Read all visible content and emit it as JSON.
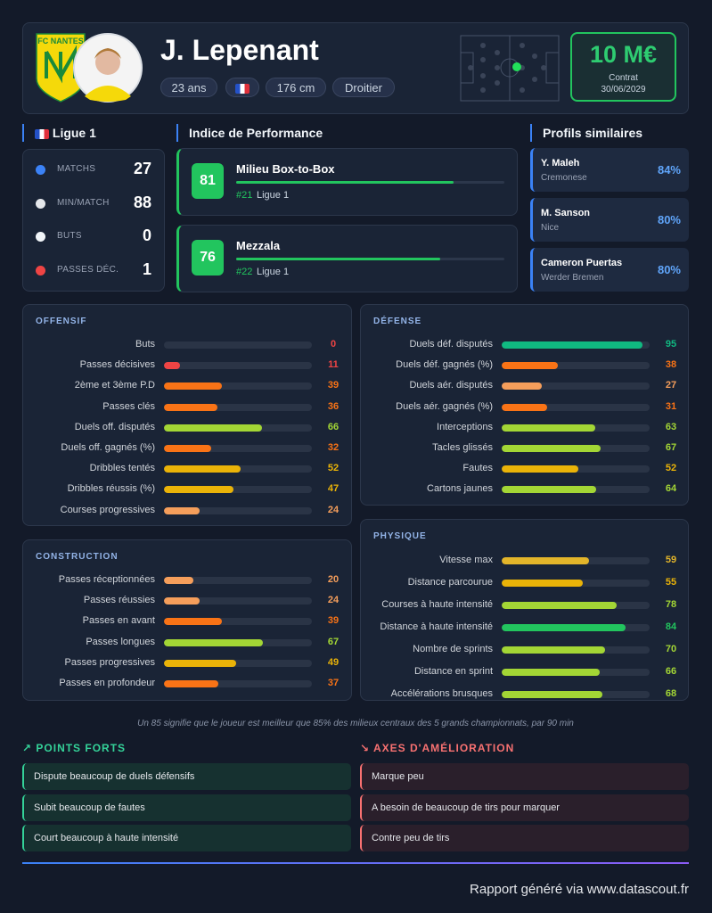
{
  "header": {
    "club": "FC NANTES",
    "name": "J. Lepenant",
    "age": "23 ans",
    "height": "176 cm",
    "foot": "Droitier",
    "market_value": "10 M€",
    "contract_label": "Contrat",
    "contract_end": "30/06/2029"
  },
  "league": {
    "title": "Ligue 1",
    "stats": [
      {
        "label": "MATCHS",
        "value": 27
      },
      {
        "label": "MIN/MATCH",
        "value": 88
      },
      {
        "label": "BUTS",
        "value": 0
      },
      {
        "label": "PASSES DÉC.",
        "value": 1
      }
    ]
  },
  "performance": {
    "title": "Indice de Performance",
    "roles": [
      {
        "score": 81,
        "role": "Milieu Box-to-Box",
        "rank": "#21",
        "league": "Ligue 1"
      },
      {
        "score": 76,
        "role": "Mezzala",
        "rank": "#22",
        "league": "Ligue 1"
      }
    ]
  },
  "similar": {
    "title": "Profils similaires",
    "players": [
      {
        "name": "Y. Maleh",
        "club": "Cremonese",
        "similarity": "84%"
      },
      {
        "name": "M. Sanson",
        "club": "Nice",
        "similarity": "80%"
      },
      {
        "name": "Cameron Puertas",
        "club": "Werder Bremen",
        "similarity": "80%"
      }
    ]
  },
  "panels": [
    {
      "title": "OFFENSIF",
      "metrics": [
        {
          "label": "Buts",
          "value": 0
        },
        {
          "label": "Passes décisives",
          "value": 11
        },
        {
          "label": "2ème et 3ème P.D",
          "value": 39
        },
        {
          "label": "Passes clés",
          "value": 36
        },
        {
          "label": "Duels off. disputés",
          "value": 66
        },
        {
          "label": "Duels off. gagnés (%)",
          "value": 32
        },
        {
          "label": "Dribbles tentés",
          "value": 52
        },
        {
          "label": "Dribbles réussis (%)",
          "value": 47
        },
        {
          "label": "Courses progressives",
          "value": 24
        }
      ]
    },
    {
      "title": "DÉFENSE",
      "metrics": [
        {
          "label": "Duels déf. disputés",
          "value": 95
        },
        {
          "label": "Duels déf. gagnés (%)",
          "value": 38
        },
        {
          "label": "Duels aér. disputés",
          "value": 27
        },
        {
          "label": "Duels aér. gagnés (%)",
          "value": 31
        },
        {
          "label": "Interceptions",
          "value": 63
        },
        {
          "label": "Tacles glissés",
          "value": 67
        },
        {
          "label": "Fautes",
          "value": 52
        },
        {
          "label": "Cartons jaunes",
          "value": 64
        }
      ]
    },
    {
      "title": "CONSTRUCTION",
      "metrics": [
        {
          "label": "Passes réceptionnées",
          "value": 20
        },
        {
          "label": "Passes réussies",
          "value": 24
        },
        {
          "label": "Passes en avant",
          "value": 39
        },
        {
          "label": "Passes longues",
          "value": 67
        },
        {
          "label": "Passes progressives",
          "value": 49
        },
        {
          "label": "Passes en profondeur",
          "value": 37
        }
      ]
    },
    {
      "title": "PHYSIQUE",
      "metrics": [
        {
          "label": "Vitesse max",
          "value": 59
        },
        {
          "label": "Distance parcourue",
          "value": 55
        },
        {
          "label": "Courses à haute intensité",
          "value": 78
        },
        {
          "label": "Distance à haute intensité",
          "value": 84
        },
        {
          "label": "Nombre de sprints",
          "value": 70
        },
        {
          "label": "Distance en sprint",
          "value": 66
        },
        {
          "label": "Accélérations brusques",
          "value": 68
        }
      ]
    }
  ],
  "footnote": "Un 85 signifie que le joueur est meilleur que 85% des milieux centraux des 5 grands championnats, par 90 min",
  "strengths": {
    "title": "POINTS FORTS",
    "items": [
      "Dispute beaucoup de duels défensifs",
      "Subit beaucoup de fautes",
      "Court beaucoup à haute intensité"
    ]
  },
  "improvements": {
    "title": "AXES D'AMÉLIORATION",
    "items": [
      "Marque peu",
      "A besoin de beaucoup de tirs pour marquer",
      "Contre peu de tirs"
    ]
  },
  "footer": "Rapport généré via www.datascout.fr"
}
